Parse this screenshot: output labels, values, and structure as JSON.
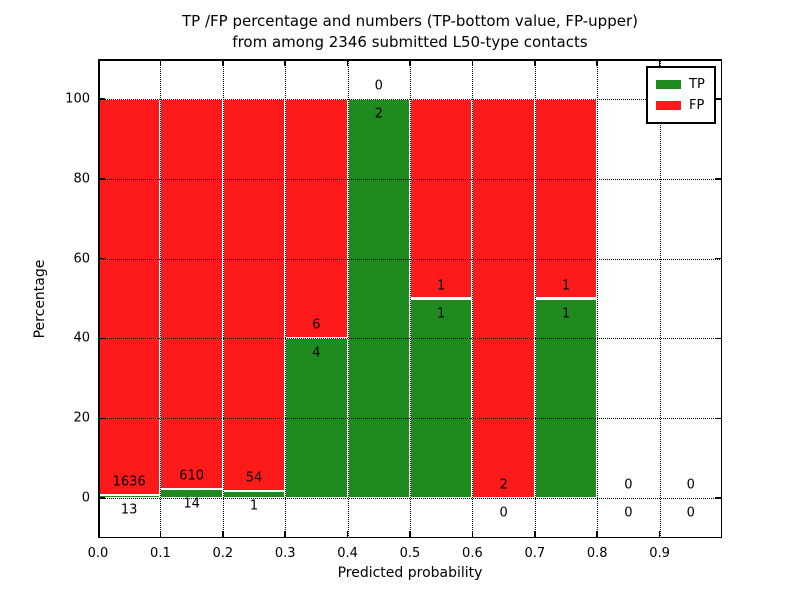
{
  "chart_data": {
    "type": "bar",
    "stacked": true,
    "title": "TP /FP percentage and numbers (TP-bottom value, FP-upper) from among 2346 submitted L50-type contacts",
    "title_lines": [
      "TP /FP percentage and numbers (TP-bottom value, FP-upper)",
      "from among 2346 submitted L50-type contacts"
    ],
    "xlabel": "Predicted probability",
    "ylabel": "Percentage",
    "xlim": [
      0.0,
      1.0
    ],
    "ylim": [
      -10,
      110
    ],
    "xtick_labels": [
      "0.0",
      "0.1",
      "0.2",
      "0.3",
      "0.4",
      "0.5",
      "0.6",
      "0.7",
      "0.8",
      "0.9"
    ],
    "ytick_values": [
      0,
      20,
      40,
      60,
      80,
      100
    ],
    "grid_style": "dotted",
    "colors": {
      "tp": "#1f8b1f",
      "fp": "#fc1a1a",
      "bar_edge": "#ffffff",
      "axes": "#000000",
      "background": "#ffffff"
    },
    "legend": {
      "position": "upper-right",
      "entries": [
        {
          "label": "TP",
          "color": "#1f8b1f"
        },
        {
          "label": "FP",
          "color": "#fc1a1a"
        }
      ]
    },
    "categories": [
      "0.0-0.1",
      "0.1-0.2",
      "0.2-0.3",
      "0.3-0.4",
      "0.4-0.5",
      "0.5-0.6",
      "0.6-0.7",
      "0.7-0.8",
      "0.8-0.9",
      "0.9-1.0"
    ],
    "series": [
      {
        "name": "TP",
        "counts": [
          13,
          14,
          1,
          4,
          2,
          1,
          0,
          1,
          0,
          0
        ]
      },
      {
        "name": "FP",
        "counts": [
          1636,
          610,
          54,
          6,
          0,
          1,
          2,
          1,
          0,
          0
        ]
      }
    ],
    "bins": [
      {
        "range": "0.0-0.1",
        "tp": 13,
        "fp": 1636,
        "tp_pct": 0.79,
        "has_bar": true
      },
      {
        "range": "0.1-0.2",
        "tp": 14,
        "fp": 610,
        "tp_pct": 2.24,
        "has_bar": true
      },
      {
        "range": "0.2-0.3",
        "tp": 1,
        "fp": 54,
        "tp_pct": 1.82,
        "has_bar": true
      },
      {
        "range": "0.3-0.4",
        "tp": 4,
        "fp": 6,
        "tp_pct": 40,
        "has_bar": true
      },
      {
        "range": "0.4-0.5",
        "tp": 2,
        "fp": 0,
        "tp_pct": 100,
        "has_bar": true
      },
      {
        "range": "0.5-0.6",
        "tp": 1,
        "fp": 1,
        "tp_pct": 50,
        "has_bar": true
      },
      {
        "range": "0.6-0.7",
        "tp": 0,
        "fp": 2,
        "tp_pct": 0,
        "has_bar": true
      },
      {
        "range": "0.7-0.8",
        "tp": 1,
        "fp": 1,
        "tp_pct": 50,
        "has_bar": true
      },
      {
        "range": "0.8-0.9",
        "tp": 0,
        "fp": 0,
        "tp_pct": 0,
        "has_bar": false
      },
      {
        "range": "0.9-1.0",
        "tp": 0,
        "fp": 0,
        "tp_pct": 0,
        "has_bar": false
      }
    ]
  }
}
